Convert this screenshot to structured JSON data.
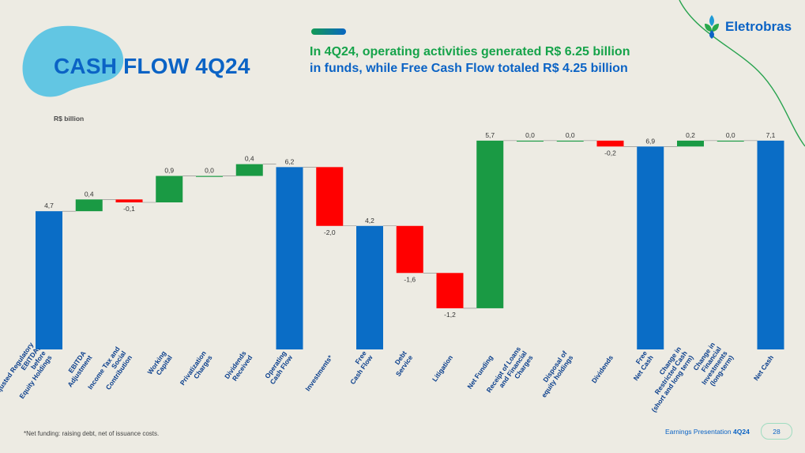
{
  "slide": {
    "title": "CASH FLOW 4Q24",
    "headline_line1": "In 4Q24, operating activities generated R$ 6.25 billion",
    "headline_line2": "in funds, while Free Cash Flow totaled R$ 4.25 billion",
    "logo_text": "Eletrobras",
    "footnote": "*Net funding: raising debt, net of issuance costs.",
    "footer_text": "Earnings Presentation",
    "footer_period": "4Q24",
    "page_number": "28"
  },
  "colors": {
    "total": "#0a6dc6",
    "increase": "#1a9a44",
    "decrease": "#ff0000",
    "title": "#0b63c5",
    "headline_green": "#16a34a",
    "blob": "#62c6e3",
    "deco_line": "#29a34f"
  },
  "chart_data": {
    "type": "bar",
    "subtype": "waterfall",
    "unit_label": "R$ billion",
    "ylim": [
      0,
      7.1
    ],
    "grid": false,
    "decimal_separator": ",",
    "items": [
      {
        "label": [
          "Ajusted Regulatory",
          "EBITDA,",
          "before",
          "Equity Holdings"
        ],
        "value": 4.7,
        "kind": "total",
        "value_label": "4,7"
      },
      {
        "label": [
          "EBITDA",
          "Adjustment"
        ],
        "value": 0.4,
        "kind": "increase",
        "value_label": "0,4"
      },
      {
        "label": [
          "Income Tax and",
          "Social",
          "Contribution"
        ],
        "value": -0.1,
        "kind": "decrease",
        "value_label": "-0,1"
      },
      {
        "label": [
          "Working",
          "Capital"
        ],
        "value": 0.9,
        "kind": "increase",
        "value_label": "0,9"
      },
      {
        "label": [
          "Privatization",
          "Charges"
        ],
        "value": 0.0,
        "kind": "increase",
        "value_label": "0,0"
      },
      {
        "label": [
          "Dividends",
          "Received"
        ],
        "value": 0.4,
        "kind": "increase",
        "value_label": "0,4"
      },
      {
        "label": [
          "Operating",
          "Cash Flow"
        ],
        "value": 6.2,
        "kind": "total",
        "value_label": "6,2"
      },
      {
        "label": [
          "Investments*"
        ],
        "value": -2.0,
        "kind": "decrease",
        "value_label": "-2,0"
      },
      {
        "label": [
          "Free",
          "Cash Flow"
        ],
        "value": 4.2,
        "kind": "total",
        "value_label": "4,2"
      },
      {
        "label": [
          "Debt",
          "Service"
        ],
        "value": -1.6,
        "kind": "decrease",
        "value_label": "-1,6"
      },
      {
        "label": [
          "Litigation"
        ],
        "value": -1.2,
        "kind": "decrease",
        "value_label": "-1,2"
      },
      {
        "label": [
          "Net Funding"
        ],
        "value": 5.7,
        "kind": "increase",
        "value_label": "5,7"
      },
      {
        "label": [
          "Receipt of Loans",
          "and Financial",
          "Charges"
        ],
        "value": 0.0,
        "kind": "increase",
        "value_label": "0,0"
      },
      {
        "label": [
          "Disposal of",
          "equity holdings"
        ],
        "value": 0.0,
        "kind": "increase",
        "value_label": "0,0"
      },
      {
        "label": [
          "Dividends"
        ],
        "value": -0.2,
        "kind": "decrease",
        "value_label": "-0,2"
      },
      {
        "label": [
          "Free",
          "Net Cash"
        ],
        "value": 6.9,
        "kind": "total",
        "value_label": "6,9"
      },
      {
        "label": [
          "Change in",
          "Restricted Cash",
          "(short and long term)"
        ],
        "value": 0.2,
        "kind": "increase",
        "value_label": "0,2"
      },
      {
        "label": [
          "Change in",
          "Financial",
          "Investments",
          "(long-term)"
        ],
        "value": 0.0,
        "kind": "increase",
        "value_label": "0,0"
      },
      {
        "label": [
          "Net Cash"
        ],
        "value": 7.1,
        "kind": "total",
        "value_label": "7,1"
      }
    ]
  }
}
